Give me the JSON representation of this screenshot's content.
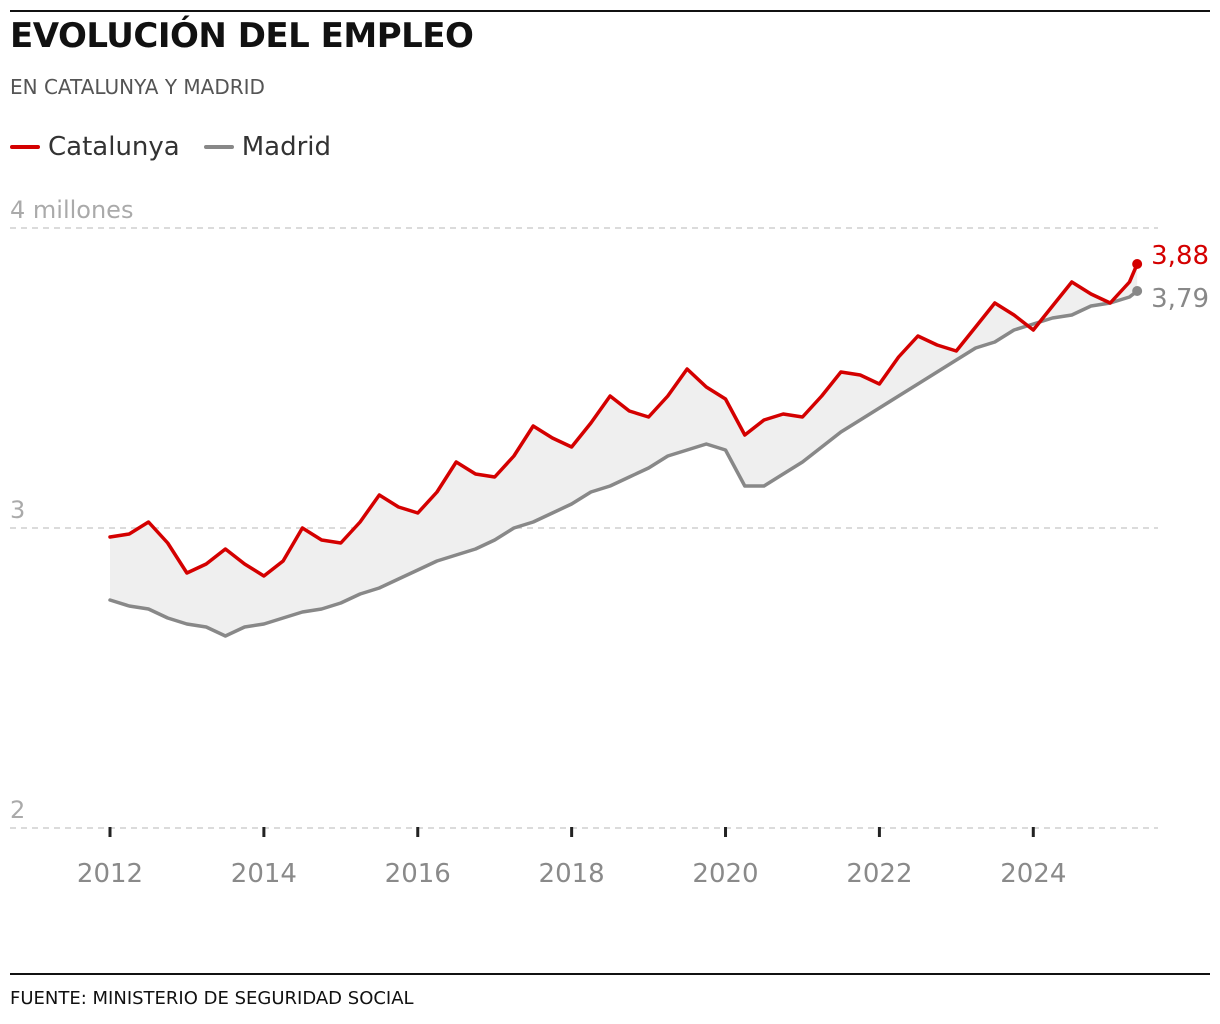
{
  "header": {
    "title": "EVOLUCIÓN DEL EMPLEO",
    "subtitle": "EN CATALUNYA Y MADRID"
  },
  "legend": {
    "items": [
      {
        "label": "Catalunya",
        "color": "#d40000"
      },
      {
        "label": "Madrid",
        "color": "#888888"
      }
    ]
  },
  "footer": {
    "source": "FUENTE: MINISTERIO DE SEGURIDAD SOCIAL"
  },
  "chart_data": {
    "type": "line",
    "title": "EVOLUCIÓN DEL EMPLEO",
    "subtitle": "EN CATALUNYA Y MADRID",
    "xlabel": "",
    "ylabel": "",
    "ylim": [
      2,
      4
    ],
    "xlim": [
      2012,
      2025.4
    ],
    "y_ticks": [
      {
        "value": 4,
        "label": "4 millones"
      },
      {
        "value": 3,
        "label": "3"
      },
      {
        "value": 2,
        "label": "2"
      }
    ],
    "x_ticks": [
      {
        "value": 2012,
        "label": "2012"
      },
      {
        "value": 2014,
        "label": "2014"
      },
      {
        "value": 2016,
        "label": "2016"
      },
      {
        "value": 2018,
        "label": "2018"
      },
      {
        "value": 2020,
        "label": "2020"
      },
      {
        "value": 2022,
        "label": "2022"
      },
      {
        "value": 2024,
        "label": "2024"
      }
    ],
    "grid": "horizontal dashed",
    "legend_position": "top-left",
    "band_between_series": true,
    "series": [
      {
        "name": "Catalunya",
        "color": "#d40000",
        "end_label": "3,88",
        "points": [
          [
            2012,
            2.97
          ],
          [
            2012.25,
            2.98
          ],
          [
            2012.5,
            3.02
          ],
          [
            2012.75,
            2.95
          ],
          [
            2013,
            2.85
          ],
          [
            2013.25,
            2.88
          ],
          [
            2013.5,
            2.93
          ],
          [
            2013.75,
            2.88
          ],
          [
            2014,
            2.84
          ],
          [
            2014.25,
            2.89
          ],
          [
            2014.5,
            3.0
          ],
          [
            2014.75,
            2.96
          ],
          [
            2015,
            2.95
          ],
          [
            2015.25,
            3.02
          ],
          [
            2015.5,
            3.11
          ],
          [
            2015.75,
            3.07
          ],
          [
            2016,
            3.05
          ],
          [
            2016.25,
            3.12
          ],
          [
            2016.5,
            3.22
          ],
          [
            2016.75,
            3.18
          ],
          [
            2017,
            3.17
          ],
          [
            2017.25,
            3.24
          ],
          [
            2017.5,
            3.34
          ],
          [
            2017.75,
            3.3
          ],
          [
            2018,
            3.27
          ],
          [
            2018.25,
            3.35
          ],
          [
            2018.5,
            3.44
          ],
          [
            2018.75,
            3.39
          ],
          [
            2019,
            3.37
          ],
          [
            2019.25,
            3.44
          ],
          [
            2019.5,
            3.53
          ],
          [
            2019.75,
            3.47
          ],
          [
            2020,
            3.43
          ],
          [
            2020.25,
            3.31
          ],
          [
            2020.5,
            3.36
          ],
          [
            2020.75,
            3.38
          ],
          [
            2021,
            3.37
          ],
          [
            2021.25,
            3.44
          ],
          [
            2021.5,
            3.52
          ],
          [
            2021.75,
            3.51
          ],
          [
            2022,
            3.48
          ],
          [
            2022.25,
            3.57
          ],
          [
            2022.5,
            3.64
          ],
          [
            2022.75,
            3.61
          ],
          [
            2023,
            3.59
          ],
          [
            2023.25,
            3.67
          ],
          [
            2023.5,
            3.75
          ],
          [
            2023.75,
            3.71
          ],
          [
            2024,
            3.66
          ],
          [
            2024.25,
            3.74
          ],
          [
            2024.5,
            3.82
          ],
          [
            2024.75,
            3.78
          ],
          [
            2025,
            3.75
          ],
          [
            2025.25,
            3.82
          ],
          [
            2025.35,
            3.88
          ]
        ]
      },
      {
        "name": "Madrid",
        "color": "#888888",
        "end_label": "3,79",
        "points": [
          [
            2012,
            2.76
          ],
          [
            2012.25,
            2.74
          ],
          [
            2012.5,
            2.73
          ],
          [
            2012.75,
            2.7
          ],
          [
            2013,
            2.68
          ],
          [
            2013.25,
            2.67
          ],
          [
            2013.5,
            2.64
          ],
          [
            2013.75,
            2.67
          ],
          [
            2014,
            2.68
          ],
          [
            2014.25,
            2.7
          ],
          [
            2014.5,
            2.72
          ],
          [
            2014.75,
            2.73
          ],
          [
            2015,
            2.75
          ],
          [
            2015.25,
            2.78
          ],
          [
            2015.5,
            2.8
          ],
          [
            2015.75,
            2.83
          ],
          [
            2016,
            2.86
          ],
          [
            2016.25,
            2.89
          ],
          [
            2016.5,
            2.91
          ],
          [
            2016.75,
            2.93
          ],
          [
            2017,
            2.96
          ],
          [
            2017.25,
            3.0
          ],
          [
            2017.5,
            3.02
          ],
          [
            2017.75,
            3.05
          ],
          [
            2018,
            3.08
          ],
          [
            2018.25,
            3.12
          ],
          [
            2018.5,
            3.14
          ],
          [
            2018.75,
            3.17
          ],
          [
            2019,
            3.2
          ],
          [
            2019.25,
            3.24
          ],
          [
            2019.5,
            3.26
          ],
          [
            2019.75,
            3.28
          ],
          [
            2020,
            3.26
          ],
          [
            2020.25,
            3.14
          ],
          [
            2020.5,
            3.14
          ],
          [
            2020.75,
            3.18
          ],
          [
            2021,
            3.22
          ],
          [
            2021.25,
            3.27
          ],
          [
            2021.5,
            3.32
          ],
          [
            2021.75,
            3.36
          ],
          [
            2022,
            3.4
          ],
          [
            2022.25,
            3.44
          ],
          [
            2022.5,
            3.48
          ],
          [
            2022.75,
            3.52
          ],
          [
            2023,
            3.56
          ],
          [
            2023.25,
            3.6
          ],
          [
            2023.5,
            3.62
          ],
          [
            2023.75,
            3.66
          ],
          [
            2024,
            3.68
          ],
          [
            2024.25,
            3.7
          ],
          [
            2024.5,
            3.71
          ],
          [
            2024.75,
            3.74
          ],
          [
            2025,
            3.75
          ],
          [
            2025.25,
            3.77
          ],
          [
            2025.35,
            3.79
          ]
        ]
      }
    ]
  }
}
